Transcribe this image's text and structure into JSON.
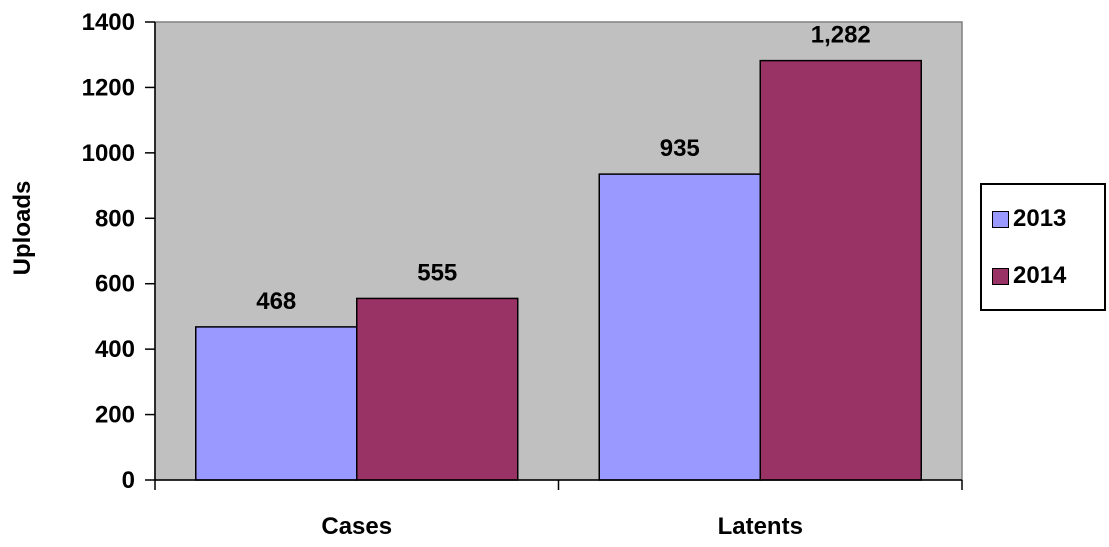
{
  "chart_data": {
    "type": "bar",
    "categories": [
      "Cases",
      "Latents"
    ],
    "series": [
      {
        "name": "2013",
        "values": [
          468,
          935
        ],
        "labels": [
          "468",
          "935"
        ],
        "color": "#9999ff"
      },
      {
        "name": "2014",
        "values": [
          555,
          1282
        ],
        "labels": [
          "555",
          "1,282"
        ],
        "color": "#993366"
      }
    ],
    "ylabel": "Uploads",
    "xlabel": "",
    "ylim": [
      0,
      1400
    ],
    "yticks": [
      0,
      200,
      400,
      600,
      800,
      1000,
      1200,
      1400
    ],
    "ytick_labels": [
      "0",
      "200",
      "400",
      "600",
      "800",
      "1000",
      "1200",
      "1400"
    ],
    "plot_background": "#c0c0c0",
    "grid": false,
    "legend_position": "right"
  }
}
